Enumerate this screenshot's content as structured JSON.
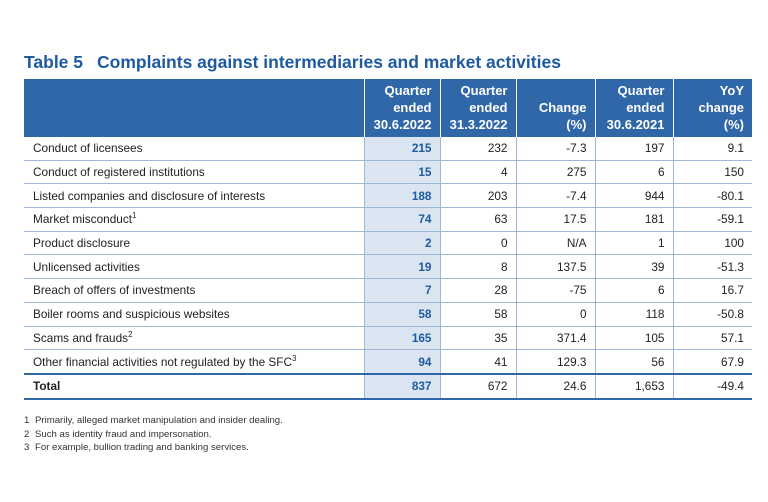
{
  "title": {
    "number": "Table 5",
    "text": "Complaints against intermediaries and market activities"
  },
  "columns": [
    {
      "lines": [
        "Quarter",
        "ended",
        "30.6.2022"
      ]
    },
    {
      "lines": [
        "Quarter",
        "ended",
        "31.3.2022"
      ]
    },
    {
      "lines": [
        "Change",
        "(%)"
      ]
    },
    {
      "lines": [
        "Quarter",
        "ended",
        "30.6.2021"
      ]
    },
    {
      "lines": [
        "YoY",
        "change",
        "(%)"
      ]
    }
  ],
  "rows": [
    {
      "label": "Conduct of licensees",
      "sup": "",
      "values": [
        "215",
        "232",
        "-7.3",
        "197",
        "9.1"
      ]
    },
    {
      "label": "Conduct of registered institutions",
      "sup": "",
      "values": [
        "15",
        "4",
        "275",
        "6",
        "150"
      ]
    },
    {
      "label": "Listed companies and disclosure of interests",
      "sup": "",
      "values": [
        "188",
        "203",
        "-7.4",
        "944",
        "-80.1"
      ]
    },
    {
      "label": "Market misconduct",
      "sup": "1",
      "values": [
        "74",
        "63",
        "17.5",
        "181",
        "-59.1"
      ]
    },
    {
      "label": "Product disclosure",
      "sup": "",
      "values": [
        "2",
        "0",
        "N/A",
        "1",
        "100"
      ]
    },
    {
      "label": "Unlicensed activities",
      "sup": "",
      "values": [
        "19",
        "8",
        "137.5",
        "39",
        "-51.3"
      ]
    },
    {
      "label": "Breach of offers of investments",
      "sup": "",
      "values": [
        "7",
        "28",
        "-75",
        "6",
        "16.7"
      ]
    },
    {
      "label": "Boiler rooms and suspicious websites",
      "sup": "",
      "values": [
        "58",
        "58",
        "0",
        "118",
        "-50.8"
      ]
    },
    {
      "label": "Scams and frauds",
      "sup": "2",
      "values": [
        "165",
        "35",
        "371.4",
        "105",
        "57.1"
      ]
    },
    {
      "label": "Other financial activities not regulated by the SFC",
      "sup": "3",
      "values": [
        "94",
        "41",
        "129.3",
        "56",
        "67.9"
      ]
    }
  ],
  "total": {
    "label": "Total",
    "values": [
      "837",
      "672",
      "24.6",
      "1,653",
      "-49.4"
    ]
  },
  "notes": [
    {
      "num": "1",
      "text": "Primarily, alleged market manipulation and insider dealing."
    },
    {
      "num": "2",
      "text": "Such as identity fraud and impersonation."
    },
    {
      "num": "3",
      "text": "For example, bullion trading and banking services."
    }
  ],
  "colors": {
    "header_bg": "#2f67a8",
    "title": "#1e5aa0",
    "highlight_col": "#dbe5f1"
  }
}
